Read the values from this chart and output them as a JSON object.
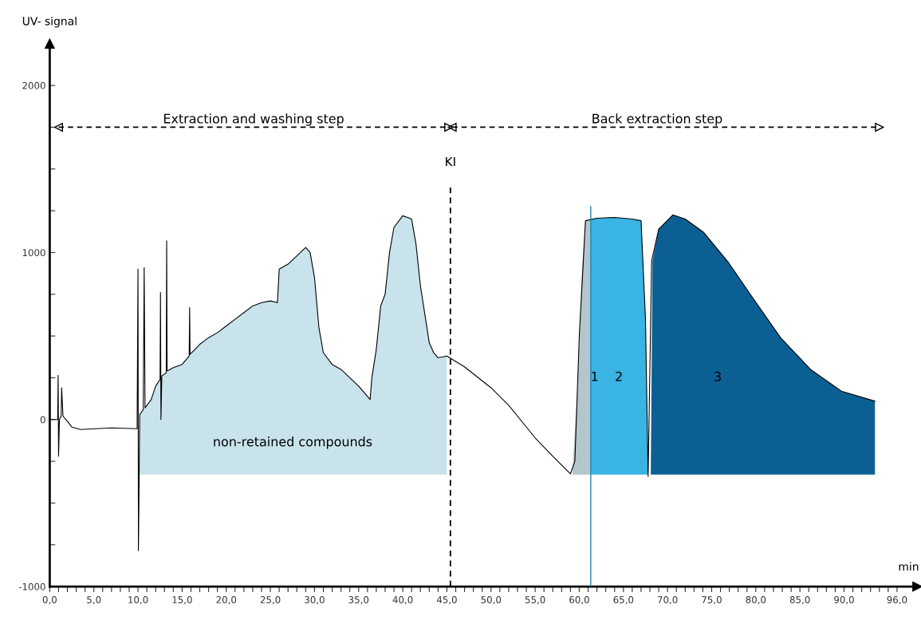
{
  "chart_data": {
    "type": "line",
    "xlabel": "min",
    "ylabel": "UV- signal",
    "xlim": [
      0,
      98.3
    ],
    "ylim": [
      -1000,
      2250
    ],
    "xticks": [
      {
        "value": 0,
        "label": "0,0"
      },
      {
        "value": 1,
        "label": null
      },
      {
        "value": 2,
        "label": null
      },
      {
        "value": 3,
        "label": null
      },
      {
        "value": 4,
        "label": null
      },
      {
        "value": 5,
        "label": "5,0"
      },
      {
        "value": 6,
        "label": null
      },
      {
        "value": 7,
        "label": null
      },
      {
        "value": 8,
        "label": null
      },
      {
        "value": 9,
        "label": null
      },
      {
        "value": 10,
        "label": "10,0"
      },
      {
        "value": 11,
        "label": null
      },
      {
        "value": 12,
        "label": null
      },
      {
        "value": 13,
        "label": null
      },
      {
        "value": 14,
        "label": null
      },
      {
        "value": 15,
        "label": "15,0"
      },
      {
        "value": 16,
        "label": null
      },
      {
        "value": 17,
        "label": null
      },
      {
        "value": 18,
        "label": null
      },
      {
        "value": 19,
        "label": null
      },
      {
        "value": 20,
        "label": "20,0"
      },
      {
        "value": 21,
        "label": null
      },
      {
        "value": 22,
        "label": null
      },
      {
        "value": 23,
        "label": null
      },
      {
        "value": 24,
        "label": null
      },
      {
        "value": 25,
        "label": "25,0"
      },
      {
        "value": 26,
        "label": null
      },
      {
        "value": 27,
        "label": null
      },
      {
        "value": 28,
        "label": null
      },
      {
        "value": 29,
        "label": null
      },
      {
        "value": 30,
        "label": "30,0"
      },
      {
        "value": 31,
        "label": null
      },
      {
        "value": 32,
        "label": null
      },
      {
        "value": 33,
        "label": null
      },
      {
        "value": 34,
        "label": null
      },
      {
        "value": 35,
        "label": "35,0"
      },
      {
        "value": 36,
        "label": null
      },
      {
        "value": 37,
        "label": null
      },
      {
        "value": 38,
        "label": null
      },
      {
        "value": 39,
        "label": null
      },
      {
        "value": 40,
        "label": "40,0"
      },
      {
        "value": 41,
        "label": null
      },
      {
        "value": 42,
        "label": null
      },
      {
        "value": 43,
        "label": null
      },
      {
        "value": 44,
        "label": null
      },
      {
        "value": 45,
        "label": "45,0"
      },
      {
        "value": 46,
        "label": null
      },
      {
        "value": 47,
        "label": null
      },
      {
        "value": 48,
        "label": null
      },
      {
        "value": 49,
        "label": null
      },
      {
        "value": 50,
        "label": "50,0"
      },
      {
        "value": 51,
        "label": null
      },
      {
        "value": 52,
        "label": null
      },
      {
        "value": 53,
        "label": null
      },
      {
        "value": 54,
        "label": null
      },
      {
        "value": 55,
        "label": "55,0"
      },
      {
        "value": 56,
        "label": null
      },
      {
        "value": 57,
        "label": null
      },
      {
        "value": 58,
        "label": null
      },
      {
        "value": 59,
        "label": null
      },
      {
        "value": 60,
        "label": "60,0"
      },
      {
        "value": 61,
        "label": null
      },
      {
        "value": 62,
        "label": null
      },
      {
        "value": 63,
        "label": null
      },
      {
        "value": 64,
        "label": null
      },
      {
        "value": 65,
        "label": "65,0"
      },
      {
        "value": 66,
        "label": null
      },
      {
        "value": 67,
        "label": null
      },
      {
        "value": 68,
        "label": null
      },
      {
        "value": 69,
        "label": null
      },
      {
        "value": 70,
        "label": "70,0"
      },
      {
        "value": 71,
        "label": null
      },
      {
        "value": 72,
        "label": null
      },
      {
        "value": 73,
        "label": null
      },
      {
        "value": 74,
        "label": null
      },
      {
        "value": 75,
        "label": "75,0"
      },
      {
        "value": 76,
        "label": null
      },
      {
        "value": 77,
        "label": null
      },
      {
        "value": 78,
        "label": null
      },
      {
        "value": 79,
        "label": null
      },
      {
        "value": 80,
        "label": "80,0"
      },
      {
        "value": 81,
        "label": null
      },
      {
        "value": 82,
        "label": null
      },
      {
        "value": 83,
        "label": null
      },
      {
        "value": 84,
        "label": null
      },
      {
        "value": 85,
        "label": "85,0"
      },
      {
        "value": 86,
        "label": null
      },
      {
        "value": 87,
        "label": null
      },
      {
        "value": 88,
        "label": null
      },
      {
        "value": 89,
        "label": null
      },
      {
        "value": 90,
        "label": "90,0"
      },
      {
        "value": 91,
        "label": null
      },
      {
        "value": 92,
        "label": null
      },
      {
        "value": 93,
        "label": null
      },
      {
        "value": 94,
        "label": null
      },
      {
        "value": 95,
        "label": null
      },
      {
        "value": 96,
        "label": "96,0"
      }
    ],
    "yticks": [
      -1000,
      {
        "value": -750,
        "label": null
      },
      {
        "value": -500,
        "label": null
      },
      {
        "value": -250,
        "label": null
      },
      0,
      {
        "value": 250,
        "label": null
      },
      {
        "value": 500,
        "label": null
      },
      {
        "value": 750,
        "label": null
      },
      1000,
      {
        "value": 1250,
        "label": null
      },
      {
        "value": 1500,
        "label": null
      },
      {
        "value": 1750,
        "label": null
      },
      2000
    ],
    "series": [
      {
        "type": "area",
        "color": "#c8e3ec",
        "x": [
          10.2,
          10.2,
          45,
          45,
          44,
          43.5,
          43,
          42,
          41.5,
          41,
          40,
          39,
          38.5,
          38,
          37.5,
          37,
          36.5,
          36.3,
          35,
          34,
          33,
          32,
          31,
          30.5,
          30,
          29.5,
          29,
          28,
          27,
          26,
          25.8,
          25,
          24,
          23,
          22,
          21,
          20,
          19,
          18,
          17,
          15,
          14,
          13.2,
          12.5,
          12,
          11.5
        ],
        "values": [
          30,
          -330,
          -330,
          380,
          370,
          400,
          460,
          800,
          1050,
          1200,
          1220,
          1150,
          1000,
          750,
          680,
          420,
          250,
          120,
          200,
          250,
          300,
          330,
          400,
          550,
          850,
          1000,
          1030,
          980,
          930,
          900,
          700,
          710,
          700,
          680,
          640,
          600,
          560,
          520,
          490,
          450,
          330,
          310,
          280,
          240,
          200,
          120
        ]
      },
      {
        "type": "area",
        "color": "#b4c6cd",
        "x": [
          59.2,
          61.3,
          61.3,
          60.7,
          60.3,
          59.8
        ],
        "values": [
          -330,
          -330,
          1200,
          1190,
          900,
          200
        ]
      },
      {
        "type": "area",
        "color": "#3ab4e2",
        "x": [
          61.3,
          62,
          64,
          66,
          67,
          67.5,
          67.8,
          61.3
        ],
        "values": [
          1200,
          1205,
          1210,
          1200,
          1190,
          600,
          -330,
          -330
        ]
      },
      {
        "type": "area",
        "color": "#0b5f93",
        "x": [
          68.1,
          68.3,
          69,
          70.6,
          72,
          74.1,
          76.9,
          79.7,
          82.8,
          86.2,
          89.7,
          93.5,
          93.5
        ],
        "values": [
          -330,
          950,
          1140,
          1225,
          1200,
          1120,
          940,
          725,
          490,
          300,
          170,
          110,
          -330
        ]
      },
      {
        "color": "#000000",
        "x": [
          0,
          0.9,
          0.95,
          1.0,
          1.1,
          1.3,
          1.35,
          1.5,
          2.0,
          2.5,
          3.5,
          7,
          9.9,
          10.0,
          10.05,
          10.2,
          10.6,
          10.7,
          10.8,
          11.5,
          12,
          12.5,
          12.55,
          12.6,
          12.7,
          13.2,
          13.25,
          13.3,
          14,
          15,
          15.8,
          15.85,
          15.9,
          17,
          18,
          19,
          20,
          21,
          22,
          23,
          24,
          25,
          25.8,
          26,
          27,
          28,
          29,
          29.5,
          30,
          30.5,
          31,
          32,
          33,
          34,
          35,
          36.3,
          36.5,
          37,
          37.5,
          38,
          38.5,
          39,
          40,
          41,
          41.5,
          42,
          43,
          43.5,
          44,
          45,
          47,
          50,
          52,
          55,
          57,
          59,
          59.5,
          60,
          60.7,
          62,
          64,
          66,
          67,
          67.5,
          67.8,
          68.2,
          69,
          70.6,
          72,
          74.1,
          76.9,
          79.7,
          82.8,
          86.2,
          89.7,
          93.5
        ],
        "values": [
          0,
          0,
          265,
          -220,
          0,
          20,
          190,
          20,
          -10,
          -45,
          -60,
          -50,
          -55,
          900,
          -785,
          30,
          60,
          910,
          70,
          120,
          200,
          240,
          760,
          0,
          260,
          280,
          1070,
          290,
          310,
          330,
          380,
          670,
          390,
          450,
          490,
          520,
          560,
          600,
          640,
          680,
          700,
          710,
          700,
          900,
          930,
          980,
          1030,
          1000,
          850,
          550,
          400,
          330,
          300,
          250,
          200,
          120,
          250,
          420,
          680,
          750,
          1000,
          1150,
          1220,
          1200,
          1050,
          800,
          460,
          400,
          370,
          380,
          315,
          190,
          85,
          -110,
          -220,
          -325,
          -250,
          500,
          1190,
          1205,
          1210,
          1200,
          1190,
          600,
          -340,
          950,
          1140,
          1225,
          1200,
          1120,
          940,
          725,
          490,
          300,
          170,
          110
        ]
      },
      {
        "type": "line",
        "color": "#000000",
        "line_style": "dashed",
        "marker": "triangle",
        "x": [
          1,
          45.2
        ],
        "values": [
          1750,
          1750
        ]
      },
      {
        "type": "line",
        "color": "#000000",
        "line_style": "dashed",
        "marker": "triangle",
        "x": [
          45.6,
          94
        ],
        "values": [
          1750,
          1750
        ]
      }
    ],
    "ref_lines": [
      {
        "axis": "x",
        "value": 45.4,
        "label": "KI",
        "line_style": "dashed",
        "color": "#000000"
      },
      {
        "axis": "x",
        "value": 61.3,
        "color": "#1f86b0"
      }
    ],
    "annotations": [
      "Extraction and washing step",
      "Back extraction step",
      "non-retained compounds",
      "1",
      "2",
      "3"
    ],
    "grid": false,
    "legend": false
  }
}
